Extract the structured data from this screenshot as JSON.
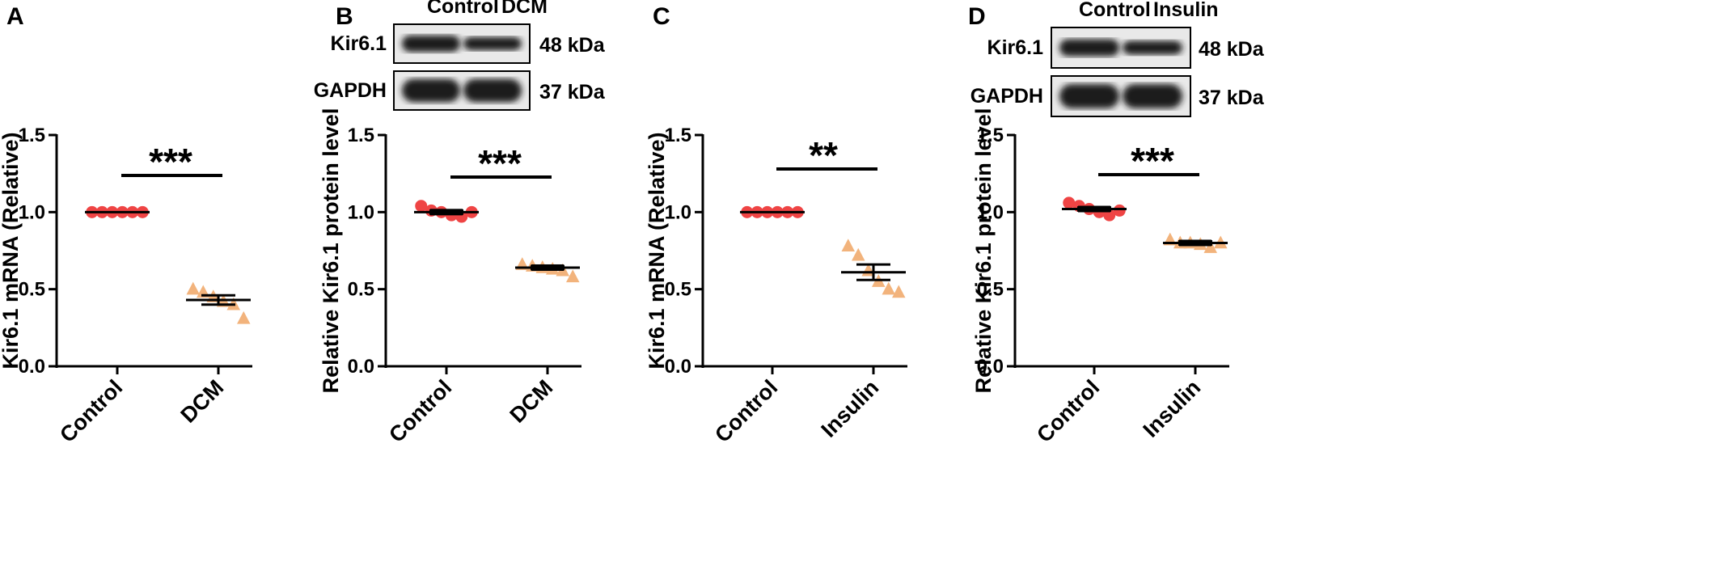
{
  "colors": {
    "control": "#ef4444",
    "treatment": "#f2b37c",
    "axis": "#000000"
  },
  "chart_data": [
    {
      "type": "scatter",
      "panel": "A",
      "ylabel": "Kir6.1 mRNA (Relative)",
      "ylim": [
        0,
        1.5
      ],
      "yticks": [
        "0.0",
        "0.5",
        "1.0",
        "1.5"
      ],
      "categories": [
        "Control",
        "DCM"
      ],
      "series": [
        {
          "values": [
            1.0,
            1.0,
            1.0,
            1.0,
            1.0,
            1.0
          ],
          "marker": "circle",
          "mean": 1.0,
          "sem": 0.0
        },
        {
          "values": [
            0.5,
            0.48,
            0.45,
            0.42,
            0.4,
            0.31
          ],
          "marker": "triangle",
          "mean": 0.43,
          "sem": 0.03
        }
      ],
      "significance": "***"
    },
    {
      "type": "scatter",
      "panel": "B",
      "ylabel": "Relative Kir6.1 protein level",
      "ylim": [
        0,
        1.5
      ],
      "yticks": [
        "0.0",
        "0.5",
        "1.0",
        "1.5"
      ],
      "categories": [
        "Control",
        "DCM"
      ],
      "series": [
        {
          "values": [
            1.04,
            1.01,
            1.0,
            0.98,
            0.97,
            1.0
          ],
          "marker": "circle",
          "mean": 1.0,
          "sem": 0.01
        },
        {
          "values": [
            0.66,
            0.65,
            0.64,
            0.63,
            0.62,
            0.58
          ],
          "marker": "triangle",
          "mean": 0.64,
          "sem": 0.01
        }
      ],
      "significance": "***",
      "blot": {
        "lanes": [
          "Control",
          "DCM"
        ],
        "rows": [
          {
            "label": "Kir6.1",
            "size": "48 kDa"
          },
          {
            "label": "GAPDH",
            "size": "37 kDa"
          }
        ]
      }
    },
    {
      "type": "scatter",
      "panel": "C",
      "ylabel": "Kir6.1 mRNA (Relative)",
      "ylim": [
        0,
        1.5
      ],
      "yticks": [
        "0.0",
        "0.5",
        "1.0",
        "1.5"
      ],
      "categories": [
        "Control",
        "Insulin"
      ],
      "series": [
        {
          "values": [
            1.0,
            1.0,
            1.0,
            1.0,
            1.0,
            1.0
          ],
          "marker": "circle",
          "mean": 1.0,
          "sem": 0.0
        },
        {
          "values": [
            0.78,
            0.72,
            0.62,
            0.55,
            0.5,
            0.48
          ],
          "marker": "triangle",
          "mean": 0.61,
          "sem": 0.05
        }
      ],
      "significance": "**"
    },
    {
      "type": "scatter",
      "panel": "D",
      "ylabel": "Relative Kir6.1 protein level",
      "ylim": [
        0,
        1.5
      ],
      "yticks": [
        "0.0",
        "0.5",
        "1.0",
        "1.5"
      ],
      "categories": [
        "Control",
        "Insulin"
      ],
      "series": [
        {
          "values": [
            1.06,
            1.04,
            1.02,
            1.0,
            0.98,
            1.01
          ],
          "marker": "circle",
          "mean": 1.02,
          "sem": 0.01
        },
        {
          "values": [
            0.82,
            0.8,
            0.8,
            0.79,
            0.77,
            0.8
          ],
          "marker": "triangle",
          "mean": 0.8,
          "sem": 0.01
        }
      ],
      "significance": "***",
      "blot": {
        "lanes": [
          "Control",
          "Insulin"
        ],
        "rows": [
          {
            "label": "Kir6.1",
            "size": "48 kDa"
          },
          {
            "label": "GAPDH",
            "size": "37 kDa"
          }
        ]
      }
    }
  ]
}
